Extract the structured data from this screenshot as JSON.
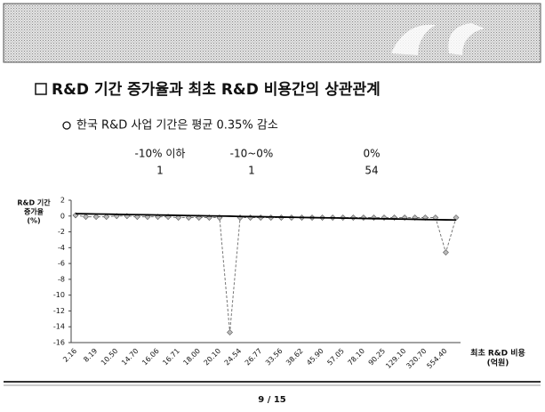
{
  "slide": {
    "title": "R&D 기간 증가율과 최초 R&D 비용간의 상관관계",
    "bullet": "한국 R&D 사업 기간은 평균 0.35% 감소",
    "table": {
      "header": [
        "-10% 이하",
        "-10~0%",
        "0%"
      ],
      "row": [
        "1",
        "1",
        "54"
      ]
    },
    "page": "9 / 15"
  },
  "chart_data": {
    "type": "line",
    "ylabel": [
      "R&D 기간",
      "증가율",
      "(%)"
    ],
    "xlabel": [
      "최초 R&D 비용",
      "(억원)"
    ],
    "categories": [
      "2.16",
      null,
      "8.19",
      null,
      "10.50",
      null,
      "14.70",
      null,
      "16.06",
      null,
      "16.71",
      null,
      "18.00",
      null,
      "20.10",
      null,
      "24.54",
      null,
      "26.77",
      null,
      "33.56",
      null,
      "38.62",
      null,
      "45.90",
      null,
      "57.05",
      null,
      "78.10",
      null,
      "90.25",
      null,
      "129.10",
      null,
      "320.70",
      null,
      "554.40",
      null
    ],
    "series": [
      {
        "color": "#777777",
        "marker": "diamond",
        "dash": true,
        "values": [
          0.1,
          -0.1,
          -0.1,
          -0.1,
          0,
          0,
          -0.1,
          -0.1,
          -0.1,
          -0.1,
          -0.2,
          -0.2,
          -0.2,
          -0.2,
          -0.2,
          -14.7,
          -0.2,
          -0.2,
          -0.2,
          -0.2,
          -0.2,
          -0.2,
          -0.2,
          -0.2,
          -0.2,
          -0.2,
          -0.2,
          -0.2,
          -0.2,
          -0.2,
          -0.2,
          -0.2,
          -0.2,
          -0.2,
          -0.2,
          -0.2,
          -4.6,
          -0.2
        ]
      },
      {
        "color": "#000000",
        "marker": "none",
        "dash": false,
        "values": [
          0.3,
          0.28,
          0.26,
          0.24,
          0.21,
          0.19,
          0.17,
          0.15,
          0.13,
          0.11,
          0.08,
          0.06,
          0.04,
          0.02,
          0,
          -0.02,
          -0.05,
          -0.07,
          -0.09,
          -0.11,
          -0.13,
          -0.15,
          -0.18,
          -0.2,
          -0.22,
          -0.24,
          -0.26,
          -0.28,
          -0.31,
          -0.33,
          -0.35,
          -0.37,
          -0.39,
          -0.41,
          -0.44,
          -0.46,
          -0.48,
          -0.5
        ]
      }
    ],
    "ylim": [
      -16,
      2
    ],
    "yticks": [
      -16,
      -14,
      -12,
      -10,
      -8,
      -6,
      -4,
      -2,
      0,
      2
    ],
    "grid": false
  }
}
